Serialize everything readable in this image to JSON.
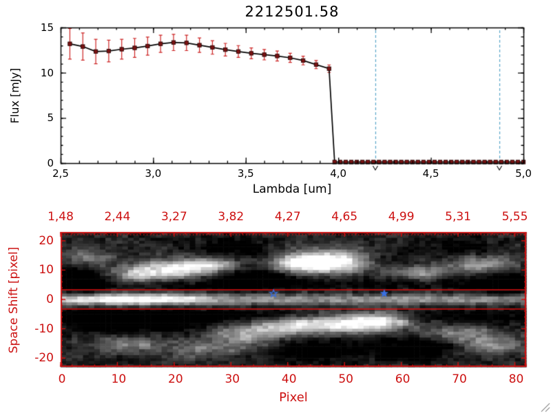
{
  "window": {
    "background": "#ffffff"
  },
  "chart_data": [
    {
      "type": "line",
      "title": "2212501.58",
      "xlabel": "Lambda [um]",
      "ylabel": "Flux [mJy]",
      "xlim": [
        2.5,
        5.0
      ],
      "ylim": [
        0,
        15
      ],
      "x_tick_values": [
        2.5,
        3.0,
        3.5,
        4.0,
        4.5,
        5.0
      ],
      "x_tick_labels": [
        "2,5",
        "3,0",
        "3,5",
        "4,0",
        "4,5",
        "5,0"
      ],
      "x_minor_step": 0.1,
      "y_tick_values": [
        0,
        5,
        10,
        15
      ],
      "y_tick_labels": [
        "0",
        "5",
        "10",
        "15"
      ],
      "y_minor_step": 1,
      "line_color": "#000000",
      "marker_color": "#7a1212",
      "errorbar_color": "#cc2222",
      "vlines": {
        "color": "#58a6c8",
        "positions": [
          4.2,
          4.87
        ]
      },
      "cursor_markers": {
        "color": "#000000",
        "symbol": "v",
        "positions": [
          4.2,
          4.87
        ]
      },
      "series": [
        {
          "name": "spectrum",
          "x": [
            2.55,
            2.62,
            2.69,
            2.76,
            2.83,
            2.9,
            2.97,
            3.04,
            3.11,
            3.18,
            3.25,
            3.32,
            3.39,
            3.46,
            3.53,
            3.6,
            3.67,
            3.74,
            3.81,
            3.88,
            3.95,
            3.98,
            4.01,
            4.04,
            4.07,
            4.1,
            4.13,
            4.16,
            4.19,
            4.22,
            4.25,
            4.28,
            4.31,
            4.34,
            4.37,
            4.4,
            4.43,
            4.46,
            4.49,
            4.52,
            4.55,
            4.58,
            4.61,
            4.64,
            4.67,
            4.7,
            4.73,
            4.76,
            4.79,
            4.82,
            4.85,
            4.88,
            4.91,
            4.94,
            4.97,
            5.0
          ],
          "y": [
            13.2,
            12.9,
            12.35,
            12.4,
            12.6,
            12.75,
            12.95,
            13.2,
            13.35,
            13.3,
            13.05,
            12.8,
            12.55,
            12.35,
            12.15,
            12.0,
            11.85,
            11.65,
            11.35,
            10.9,
            10.45,
            0.12,
            0.12,
            0.12,
            0.12,
            0.12,
            0.12,
            0.12,
            0.12,
            0.12,
            0.12,
            0.12,
            0.12,
            0.12,
            0.12,
            0.12,
            0.12,
            0.12,
            0.12,
            0.12,
            0.12,
            0.12,
            0.12,
            0.12,
            0.12,
            0.12,
            0.12,
            0.12,
            0.12,
            0.12,
            0.12,
            0.12,
            0.12,
            0.12,
            0.12,
            0.12
          ],
          "yerr": [
            1.7,
            1.5,
            1.35,
            1.2,
            1.1,
            1.05,
            1.0,
            0.95,
            0.9,
            0.85,
            0.8,
            0.75,
            0.7,
            0.65,
            0.6,
            0.58,
            0.55,
            0.5,
            0.48,
            0.45,
            0.42,
            0.12,
            0.12,
            0.12,
            0.12,
            0.12,
            0.12,
            0.12,
            0.12,
            0.12,
            0.12,
            0.12,
            0.12,
            0.12,
            0.12,
            0.12,
            0.12,
            0.12,
            0.12,
            0.12,
            0.12,
            0.12,
            0.12,
            0.12,
            0.12,
            0.12,
            0.12,
            0.12,
            0.12,
            0.12,
            0.12,
            0.12,
            0.12,
            0.12,
            0.12,
            0.12
          ]
        }
      ]
    },
    {
      "type": "heatmap",
      "xlabel": "Pixel",
      "ylabel": "Space Shift [pixel]",
      "axis_color": "#cc1111",
      "xlim": [
        0,
        82
      ],
      "ylim": [
        -23,
        23
      ],
      "x_tick_values": [
        0,
        10,
        20,
        30,
        40,
        50,
        60,
        70,
        80
      ],
      "x_tick_labels": [
        "0",
        "10",
        "20",
        "30",
        "40",
        "50",
        "60",
        "70",
        "80"
      ],
      "y_tick_values": [
        -20,
        -10,
        0,
        10,
        20
      ],
      "y_tick_labels": [
        "-20",
        "-10",
        "0",
        "10",
        "20"
      ],
      "top_axis_labels": [
        "1,48",
        "2,44",
        "3,27",
        "3,82",
        "4,27",
        "4,65",
        "4,99",
        "5,31",
        "5,55"
      ],
      "aperture": {
        "color": "#dd1111",
        "y_positions": [
          3.3,
          -3.3
        ]
      },
      "stars": {
        "color": "#3a6fe0",
        "points": [
          {
            "x": 37.5,
            "y": 2,
            "style": "open"
          },
          {
            "x": 57,
            "y": 2,
            "style": "filled"
          }
        ]
      },
      "image": {
        "seed": 42,
        "base": 0.17,
        "noise": 0.15,
        "band": {
          "y_sigma": 1.4,
          "amp_base": 0.45,
          "amp_peak": 0.55,
          "x_center": 12,
          "x_sigma": 10
        },
        "dark_lanes": {
          "amp": 0.2,
          "y_center": 5.5,
          "y_sigma": 2.0
        },
        "blobs": [
          [
            20,
            10,
            5,
            2.5,
            0.75
          ],
          [
            27,
            12,
            4,
            2,
            0.6
          ],
          [
            13,
            8,
            3,
            2,
            0.5
          ],
          [
            48,
            13,
            6,
            3,
            0.9
          ],
          [
            42,
            12,
            4,
            2,
            0.6
          ],
          [
            63,
            9,
            4,
            2,
            0.55
          ],
          [
            74,
            12,
            4,
            2,
            0.45
          ],
          [
            5,
            14,
            3,
            2,
            0.4
          ],
          [
            33,
            -12,
            5,
            2.5,
            0.55
          ],
          [
            40,
            -9,
            4,
            2,
            0.5
          ],
          [
            50,
            -8,
            6,
            2.5,
            0.85
          ],
          [
            57,
            -7,
            4,
            2,
            0.6
          ],
          [
            12,
            -15,
            4,
            2,
            0.4
          ],
          [
            70,
            -12,
            5,
            2,
            0.5
          ],
          [
            76,
            -16,
            4,
            2,
            0.45
          ],
          [
            25,
            -17,
            5,
            2,
            0.35
          ],
          [
            34,
            8,
            5,
            3,
            -0.35
          ],
          [
            57,
            13,
            4,
            3,
            -0.3
          ],
          [
            8,
            -8,
            4,
            3,
            -0.3
          ],
          [
            20,
            -8,
            6,
            3,
            -0.25
          ],
          [
            65,
            -15,
            5,
            3,
            -0.3
          ],
          [
            3,
            6,
            3,
            4,
            -0.3
          ],
          [
            78,
            4,
            3,
            3,
            -0.25
          ],
          [
            30,
            17,
            5,
            3,
            -0.3
          ],
          [
            70,
            18,
            4,
            2,
            -0.25
          ],
          [
            45,
            -17,
            6,
            3,
            -0.3
          ],
          [
            60,
            -18,
            4,
            2,
            -0.25
          ]
        ]
      }
    }
  ]
}
